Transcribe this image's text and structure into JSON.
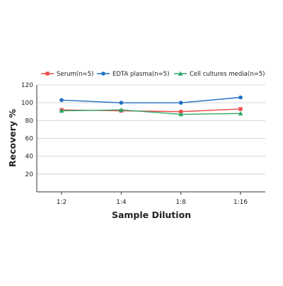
{
  "chart_data": {
    "type": "line",
    "title": "",
    "xlabel": "Sample Dilution",
    "ylabel": "Recovery %",
    "categories": [
      "1:2",
      "1:4",
      "1:8",
      "1:16"
    ],
    "ylim": [
      0,
      120
    ],
    "yticks": [
      20,
      40,
      60,
      80,
      100,
      120
    ],
    "grid": true,
    "legend_position": "top",
    "series": [
      {
        "name": "Serum(n=5)",
        "color": "#e84a4a",
        "marker": "square",
        "values": [
          92,
          91,
          90,
          93
        ]
      },
      {
        "name": "EDTA plasma(n=5)",
        "color": "#1f6fc5",
        "marker": "circle",
        "values": [
          103,
          100,
          100,
          106
        ]
      },
      {
        "name": "Cell cultures media(n=5)",
        "color": "#2fa86a",
        "marker": "triangle",
        "values": [
          91,
          92,
          87,
          88
        ]
      }
    ]
  }
}
